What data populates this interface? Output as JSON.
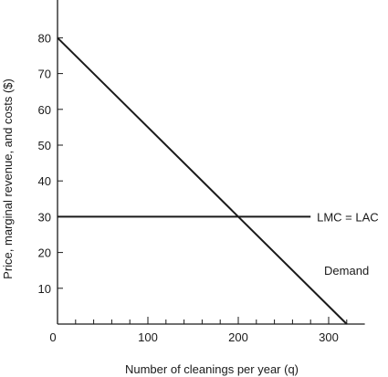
{
  "chart_data": {
    "type": "line",
    "title": "",
    "xlabel": "Number of cleanings per year (q)",
    "ylabel": "Price, marginal revenue, and costs ($)",
    "xlim": [
      0,
      340
    ],
    "ylim": [
      0,
      90
    ],
    "x_ticks": [
      0,
      100,
      200,
      300
    ],
    "x_minor_step": 20,
    "y_ticks": [
      10,
      20,
      30,
      40,
      50,
      60,
      70,
      80
    ],
    "grid": false,
    "legend": "none",
    "line_color": "#1a1a1a",
    "series": [
      {
        "label": "Demand",
        "points": [
          [
            0,
            80
          ],
          [
            320,
            0
          ]
        ]
      },
      {
        "label": "LMC = LAC",
        "points": [
          [
            0,
            30
          ],
          [
            280,
            30
          ]
        ]
      }
    ],
    "annotations": [
      {
        "text": "LMC = LAC",
        "x": 287,
        "y": 30
      },
      {
        "text": "Demand",
        "x": 295,
        "y": 15
      }
    ]
  }
}
